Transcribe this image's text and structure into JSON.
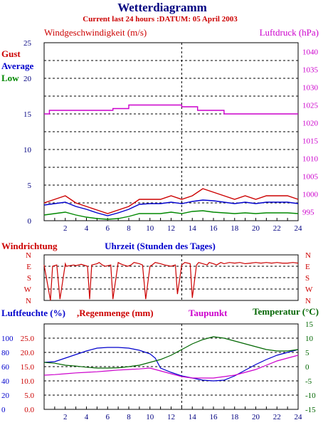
{
  "header": {
    "title": "Wetterdiagramm",
    "subtitle": "Current last 24 hours :DATUM: 05 April 2003"
  },
  "colors": {
    "wind": "#cc0000",
    "average": "#0000cc",
    "low": "#008800",
    "pressure": "#cc00cc",
    "humidity": "#0000cc",
    "rain": "#cc0000",
    "dewpoint": "#cc00cc",
    "temperature": "#006600"
  },
  "chart_data": [
    {
      "type": "line",
      "title": "",
      "ylabel_left": "Windgeschwindigkeit (m/s)",
      "ylabel_right": "Luftdruck (hPa)",
      "legend": [
        "Gust",
        "Average",
        "Low"
      ],
      "legend_placement": "left",
      "x_ticks": [
        2,
        4,
        6,
        8,
        10,
        12,
        14,
        16,
        18,
        20,
        22,
        24
      ],
      "xlim": [
        0,
        24
      ],
      "ylim_left": [
        0,
        25
      ],
      "yticks_left": [
        0,
        5,
        10,
        15,
        20,
        25
      ],
      "ylim_right": [
        992.5,
        1042.5
      ],
      "yticks_right": [
        995,
        1000,
        1005,
        1010,
        1015,
        1020,
        1025,
        1030,
        1035,
        1040
      ],
      "grid": true,
      "marker_hour": 13,
      "series": [
        {
          "name": "Luftdruck",
          "axis": "right",
          "x": [
            0,
            0.5,
            0.5,
            6.5,
            6.5,
            8,
            8,
            13,
            13,
            14.5,
            14.5,
            17,
            17,
            24
          ],
          "values": [
            1022.5,
            1022.5,
            1023.5,
            1023.5,
            1024,
            1024,
            1025,
            1025,
            1024.5,
            1024.5,
            1023.5,
            1023.5,
            1022.5,
            1022.5
          ]
        },
        {
          "name": "Gust",
          "axis": "left",
          "x": [
            0,
            1,
            2,
            3,
            4,
            5,
            6,
            7,
            8,
            9,
            10,
            11,
            12,
            13,
            14,
            15,
            16,
            17,
            18,
            19,
            20,
            21,
            22,
            23,
            24
          ],
          "values": [
            2.5,
            3.0,
            3.5,
            2.5,
            2.0,
            1.5,
            1.0,
            1.5,
            2.0,
            3.0,
            3.0,
            3.0,
            3.5,
            3.0,
            3.5,
            4.5,
            4.0,
            3.5,
            3.0,
            3.5,
            3.0,
            3.5,
            3.5,
            3.5,
            3.0
          ]
        },
        {
          "name": "Average",
          "axis": "left",
          "x": [
            0,
            1,
            2,
            3,
            4,
            5,
            6,
            7,
            8,
            9,
            10,
            11,
            12,
            13,
            14,
            15,
            16,
            17,
            18,
            19,
            20,
            21,
            22,
            23,
            24
          ],
          "values": [
            2.2,
            2.4,
            2.6,
            2.0,
            1.6,
            1.1,
            0.7,
            1.1,
            1.6,
            2.3,
            2.4,
            2.4,
            2.6,
            2.4,
            2.7,
            2.9,
            2.8,
            2.6,
            2.4,
            2.6,
            2.4,
            2.6,
            2.6,
            2.6,
            2.4
          ]
        },
        {
          "name": "Low",
          "axis": "left",
          "x": [
            0,
            1,
            2,
            3,
            4,
            5,
            6,
            7,
            8,
            9,
            10,
            11,
            12,
            13,
            14,
            15,
            16,
            17,
            18,
            19,
            20,
            21,
            22,
            23,
            24
          ],
          "values": [
            0.8,
            1.0,
            1.2,
            0.8,
            0.5,
            0.3,
            0.2,
            0.3,
            0.6,
            1.0,
            1.0,
            1.0,
            1.2,
            1.0,
            1.3,
            1.4,
            1.2,
            1.1,
            1.0,
            1.1,
            1.0,
            1.1,
            1.1,
            1.1,
            1.0
          ]
        }
      ]
    },
    {
      "type": "line",
      "title": "",
      "ylabel_left": "Windrichtung",
      "xlabel": "Uhrzeit (Stunden des Tages)",
      "ytick_labels": [
        "N",
        "W",
        "S",
        "E",
        "N"
      ],
      "xlim": [
        0,
        24
      ],
      "grid": true,
      "marker_hour": 13,
      "series": [
        {
          "name": "Windrichtung",
          "x": [
            0,
            0.6,
            0.8,
            1.2,
            1.5,
            2.0,
            2.1,
            2.8,
            3.0,
            3.5,
            4.1,
            4.3,
            4.5,
            5.0,
            5.2,
            5.5,
            5.8,
            6.3,
            6.5,
            7.0,
            7.2,
            7.5,
            7.9,
            8.2,
            8.5,
            9.0,
            9.3,
            9.6,
            10.0,
            10.2,
            10.5,
            11.0,
            11.4,
            12.0,
            12.4,
            12.6,
            13.0,
            13.3,
            13.8,
            14.0,
            14.4,
            14.6,
            15.0,
            15.4,
            15.6,
            16.0,
            16.3,
            16.7,
            17.0,
            17.5,
            18.0,
            18.5,
            19.0,
            19.5,
            20.0,
            20.5,
            21.0,
            21.5,
            22.0,
            22.5,
            23.0,
            23.5,
            24.0
          ],
          "values": [
            280,
            0,
            270,
            280,
            10,
            290,
            270,
            280,
            275,
            285,
            270,
            10,
            280,
            290,
            300,
            280,
            270,
            280,
            10,
            300,
            290,
            280,
            270,
            280,
            300,
            290,
            280,
            10,
            270,
            280,
            300,
            290,
            280,
            270,
            280,
            50,
            280,
            300,
            290,
            20,
            280,
            300,
            290,
            280,
            300,
            290,
            280,
            300,
            290,
            300,
            295,
            300,
            290,
            295,
            300,
            295,
            300,
            295,
            300,
            295,
            295,
            300,
            295
          ]
        }
      ]
    },
    {
      "type": "line",
      "title": "",
      "ylabel_left": "Luftfeuchte (%),Regenmenge (mm)",
      "ylabel_right": "Temperatur (°C)",
      "legend": [
        "Luftfeuchte (%)",
        "Regenmenge (mm)",
        "Taupunkt",
        "Temperatur (°C)"
      ],
      "x_ticks": [
        2,
        4,
        6,
        8,
        10,
        12,
        14,
        16,
        18,
        20,
        22,
        24
      ],
      "xlim": [
        0,
        24
      ],
      "ylim_humidity": [
        0,
        120
      ],
      "yticks_humidity": [
        0,
        20,
        40,
        60,
        80,
        100
      ],
      "ylim_rain": [
        0,
        30
      ],
      "yticks_rain": [
        0.0,
        5.0,
        10.0,
        15.0,
        20.0,
        25.0
      ],
      "ylim_right": [
        -15,
        15
      ],
      "yticks_right": [
        -15,
        -10,
        -5,
        0,
        5,
        10,
        15
      ],
      "grid": true,
      "marker_hour": 13,
      "series": [
        {
          "name": "Luftfeuchte (%)",
          "axis": "humidity",
          "x": [
            0,
            1,
            2,
            3,
            4,
            5,
            6,
            7,
            8,
            9,
            10,
            10.5,
            11,
            12,
            13,
            14,
            15,
            16,
            17,
            18,
            19,
            20,
            21,
            22,
            23,
            24
          ],
          "values": [
            66,
            67,
            72,
            77,
            82,
            86,
            87,
            87,
            86,
            83,
            78,
            72,
            58,
            52,
            47,
            44,
            41,
            40,
            41,
            47,
            55,
            63,
            70,
            76,
            80,
            84
          ]
        },
        {
          "name": "Temperatur (°C)",
          "axis": "right",
          "x": [
            0,
            1,
            2,
            3,
            4,
            5,
            6,
            7,
            8,
            9,
            10,
            11,
            12,
            13,
            14,
            15,
            16,
            17,
            18,
            19,
            20,
            21,
            22,
            23,
            24
          ],
          "values": [
            1.5,
            1.2,
            0.5,
            0.2,
            -0.2,
            -0.5,
            -0.5,
            -0.4,
            0.0,
            0.5,
            1.5,
            2.5,
            4.0,
            6.0,
            8.0,
            9.5,
            10.5,
            10.0,
            9.0,
            8.0,
            7.0,
            6.0,
            5.5,
            5.5,
            6.0
          ]
        },
        {
          "name": "Taupunkt",
          "axis": "right",
          "x": [
            0,
            1,
            2,
            3,
            4,
            5,
            6,
            7,
            8,
            9,
            10,
            11,
            12,
            13,
            14,
            15,
            16,
            17,
            18,
            19,
            20,
            21,
            22,
            23,
            24
          ],
          "values": [
            -3.0,
            -2.8,
            -2.5,
            -2.2,
            -2.0,
            -1.8,
            -1.5,
            -1.2,
            -1.0,
            -0.8,
            -0.5,
            -1.5,
            -2.5,
            -3.5,
            -4.0,
            -4.0,
            -4.0,
            -3.5,
            -3.0,
            -2.0,
            -1.0,
            0.5,
            2.0,
            3.0,
            4.0
          ]
        }
      ]
    }
  ]
}
